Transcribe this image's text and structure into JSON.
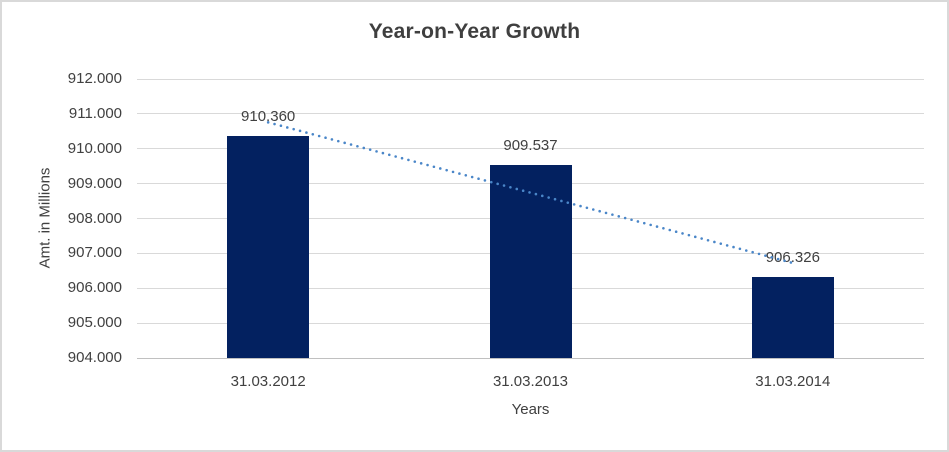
{
  "chart_data": {
    "type": "bar",
    "title": "Year-on-Year Growth",
    "categories": [
      "31.03.2012",
      "31.03.2013",
      "31.03.2014"
    ],
    "values": [
      910.36,
      909.537,
      906.326
    ],
    "data_labels": [
      "910.360",
      "909.537",
      "906.326"
    ],
    "xlabel": "Years",
    "ylabel": "Amt. in Millions",
    "ylim": [
      904,
      912
    ],
    "ytick_step": 1,
    "yticks": [
      "904.000",
      "905.000",
      "906.000",
      "907.000",
      "908.000",
      "909.000",
      "910.000",
      "911.000",
      "912.000"
    ],
    "grid": true,
    "legend": "none",
    "trendline": {
      "type": "linear",
      "style": "dotted"
    },
    "colors": {
      "bar": "#032160",
      "trendline": "#4A86C8",
      "gridline": "#D9D9D9",
      "axis_line": "#C0C0C0",
      "text": "#404040",
      "title": "#3F3F3F",
      "border": "#D9D9D9",
      "background": "#FFFFFF"
    }
  }
}
